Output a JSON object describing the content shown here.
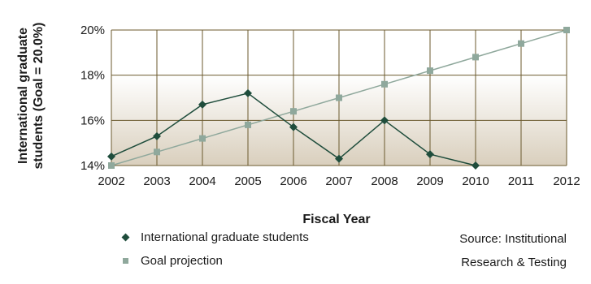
{
  "chart_data": {
    "type": "line",
    "title": "",
    "xlabel": "Fiscal Year",
    "ylabel_lines": [
      "International graduate",
      "students (Goal = 20.0%)"
    ],
    "x": [
      2002,
      2003,
      2004,
      2005,
      2006,
      2007,
      2008,
      2009,
      2010,
      2011,
      2012
    ],
    "ylim": [
      14,
      20
    ],
    "yticks": [
      14,
      16,
      18,
      20
    ],
    "ytick_labels": [
      "14%",
      "16%",
      "18%",
      "20%"
    ],
    "grid": true,
    "legend_position": "bottom-left",
    "series": [
      {
        "name": "International graduate students",
        "marker": "diamond",
        "color": "#1f4d3c",
        "x": [
          2002,
          2003,
          2004,
          2005,
          2006,
          2007,
          2008,
          2009,
          2010
        ],
        "values": [
          14.4,
          15.3,
          16.7,
          17.2,
          15.7,
          14.3,
          16.0,
          14.5,
          14.0
        ]
      },
      {
        "name": "Goal projection",
        "marker": "square",
        "color": "#8fa89c",
        "x": [
          2002,
          2003,
          2004,
          2005,
          2006,
          2007,
          2008,
          2009,
          2010,
          2011,
          2012
        ],
        "values": [
          14.0,
          14.6,
          15.2,
          15.8,
          16.4,
          17.0,
          17.6,
          18.2,
          18.8,
          19.4,
          20.0
        ]
      }
    ]
  },
  "legend": {
    "items": [
      {
        "label": "International graduate students"
      },
      {
        "label": "Goal projection"
      }
    ]
  },
  "source": {
    "line1": "Source: Institutional",
    "line2": "Research & Testing"
  }
}
